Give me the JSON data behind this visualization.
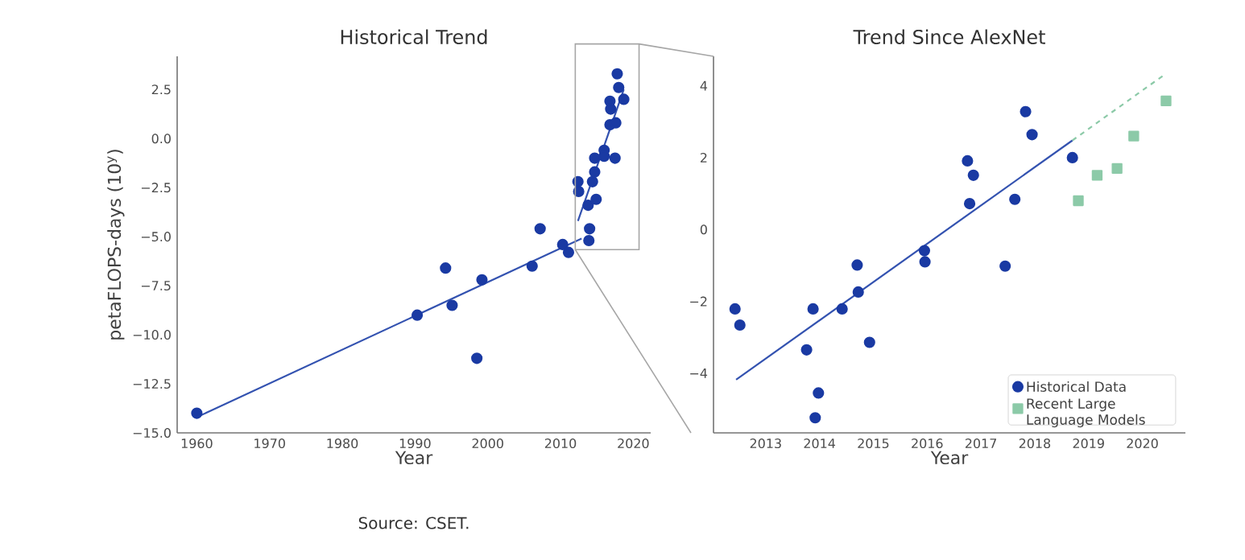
{
  "chart_data": [
    {
      "type": "scatter",
      "title": "Historical Trend",
      "xlabel": "Year",
      "ylabel": "petaFLOPS-days (10$^{y}$)",
      "xlim": [
        1957.3,
        2022.4
      ],
      "ylim": [
        -15,
        4.19
      ],
      "xticks": [
        1960,
        1970,
        1980,
        1990,
        2000,
        2010,
        2020
      ],
      "yticks": [
        {
          "value": 2.5,
          "label": "2.5"
        },
        {
          "value": 0,
          "label": "0.0"
        },
        {
          "value": -2.5,
          "label": "−2.5"
        },
        {
          "value": -5,
          "label": "−5.0"
        },
        {
          "value": -7.5,
          "label": "−7.5"
        },
        {
          "value": -10,
          "label": "−10.0"
        },
        {
          "value": -12.5,
          "label": "−12.5"
        },
        {
          "value": -15,
          "label": "−15.0"
        }
      ],
      "annotations": [
        "Source: CSET."
      ],
      "series": [
        {
          "marker": "circle",
          "color": "#1a3aa3",
          "x": [
            1960,
            1990.3,
            1994.2,
            1995.1,
            1998.5,
            1999.2,
            2006.1,
            2007.2,
            2010.3,
            2011.1,
            2012.4,
            2012.5,
            2013.8,
            2013.9,
            2014.0,
            2013.9,
            2014.4,
            2014.7,
            2014.7,
            2014.9,
            2016.0,
            2016.0,
            2016.8,
            2016.9,
            2016.8,
            2017.5,
            2017.6,
            2017.8,
            2018.0,
            2018.7
          ],
          "values": [
            -14.0,
            -9.0,
            -6.6,
            -8.5,
            -11.2,
            -7.2,
            -6.5,
            -4.6,
            -5.4,
            -5.8,
            -2.2,
            -2.7,
            -3.4,
            null,
            -4.6,
            -5.2,
            -2.2,
            -1.0,
            -1.7,
            -3.1,
            -0.6,
            -0.9,
            1.9,
            1.5,
            0.7,
            -1.0,
            0.8,
            3.3,
            2.6,
            2.0
          ]
        },
        {
          "type": "line",
          "color": "#3352b0",
          "x": [
            1960,
            2012.9
          ],
          "values": [
            -14.2,
            -5.1
          ]
        },
        {
          "type": "line",
          "color": "#3352b0",
          "x": [
            2012.4,
            2018.7
          ],
          "values": [
            -4.2,
            2.5
          ]
        }
      ]
    },
    {
      "type": "scatter",
      "title": "Trend Since AlexNet",
      "xlabel": "Year",
      "xlim": [
        2012.03,
        2020.8
      ],
      "ylim": [
        -5.66,
        4.82
      ],
      "xticks": [
        2013,
        2014,
        2015,
        2016,
        2017,
        2018,
        2019,
        2020
      ],
      "yticks": [
        4,
        2,
        0,
        {
          "value": -2,
          "label": "−2"
        },
        {
          "value": -4,
          "label": "−4"
        }
      ],
      "legend": "bottom right",
      "series": [
        {
          "name": "Historical Data",
          "marker": "circle",
          "color": "#1a3aa3",
          "x": [
            2012.43,
            2012.52,
            2013.76,
            2013.88,
            2013.98,
            2013.92,
            2014.42,
            2014.7,
            2014.72,
            2014.93,
            2015.95,
            2015.96,
            2016.75,
            2016.86,
            2016.79,
            2017.45,
            2017.63,
            2017.83,
            2017.95,
            2018.7
          ],
          "values": [
            -2.21,
            -2.66,
            -3.35,
            -2.21,
            -4.55,
            -5.24,
            -2.21,
            -0.99,
            -1.74,
            -3.14,
            -0.59,
            -0.9,
            1.91,
            1.51,
            0.72,
            -1.02,
            0.84,
            3.28,
            2.64,
            2.0
          ]
        },
        {
          "name": "Recent Large Language Models",
          "marker": "square",
          "color": "#8ccaa8",
          "x": [
            2018.81,
            2019.16,
            2019.53,
            2019.84,
            2020.44
          ],
          "values": [
            0.8,
            1.51,
            1.7,
            2.6,
            3.58
          ]
        },
        {
          "type": "line",
          "color": "#3352b0",
          "x": [
            2012.45,
            2018.7
          ],
          "values": [
            -4.18,
            2.48
          ]
        },
        {
          "type": "line",
          "line_style": "dashed",
          "color": "#8ccaa8",
          "x": [
            2018.7,
            2020.44
          ],
          "values": [
            2.48,
            4.34
          ]
        }
      ]
    }
  ]
}
